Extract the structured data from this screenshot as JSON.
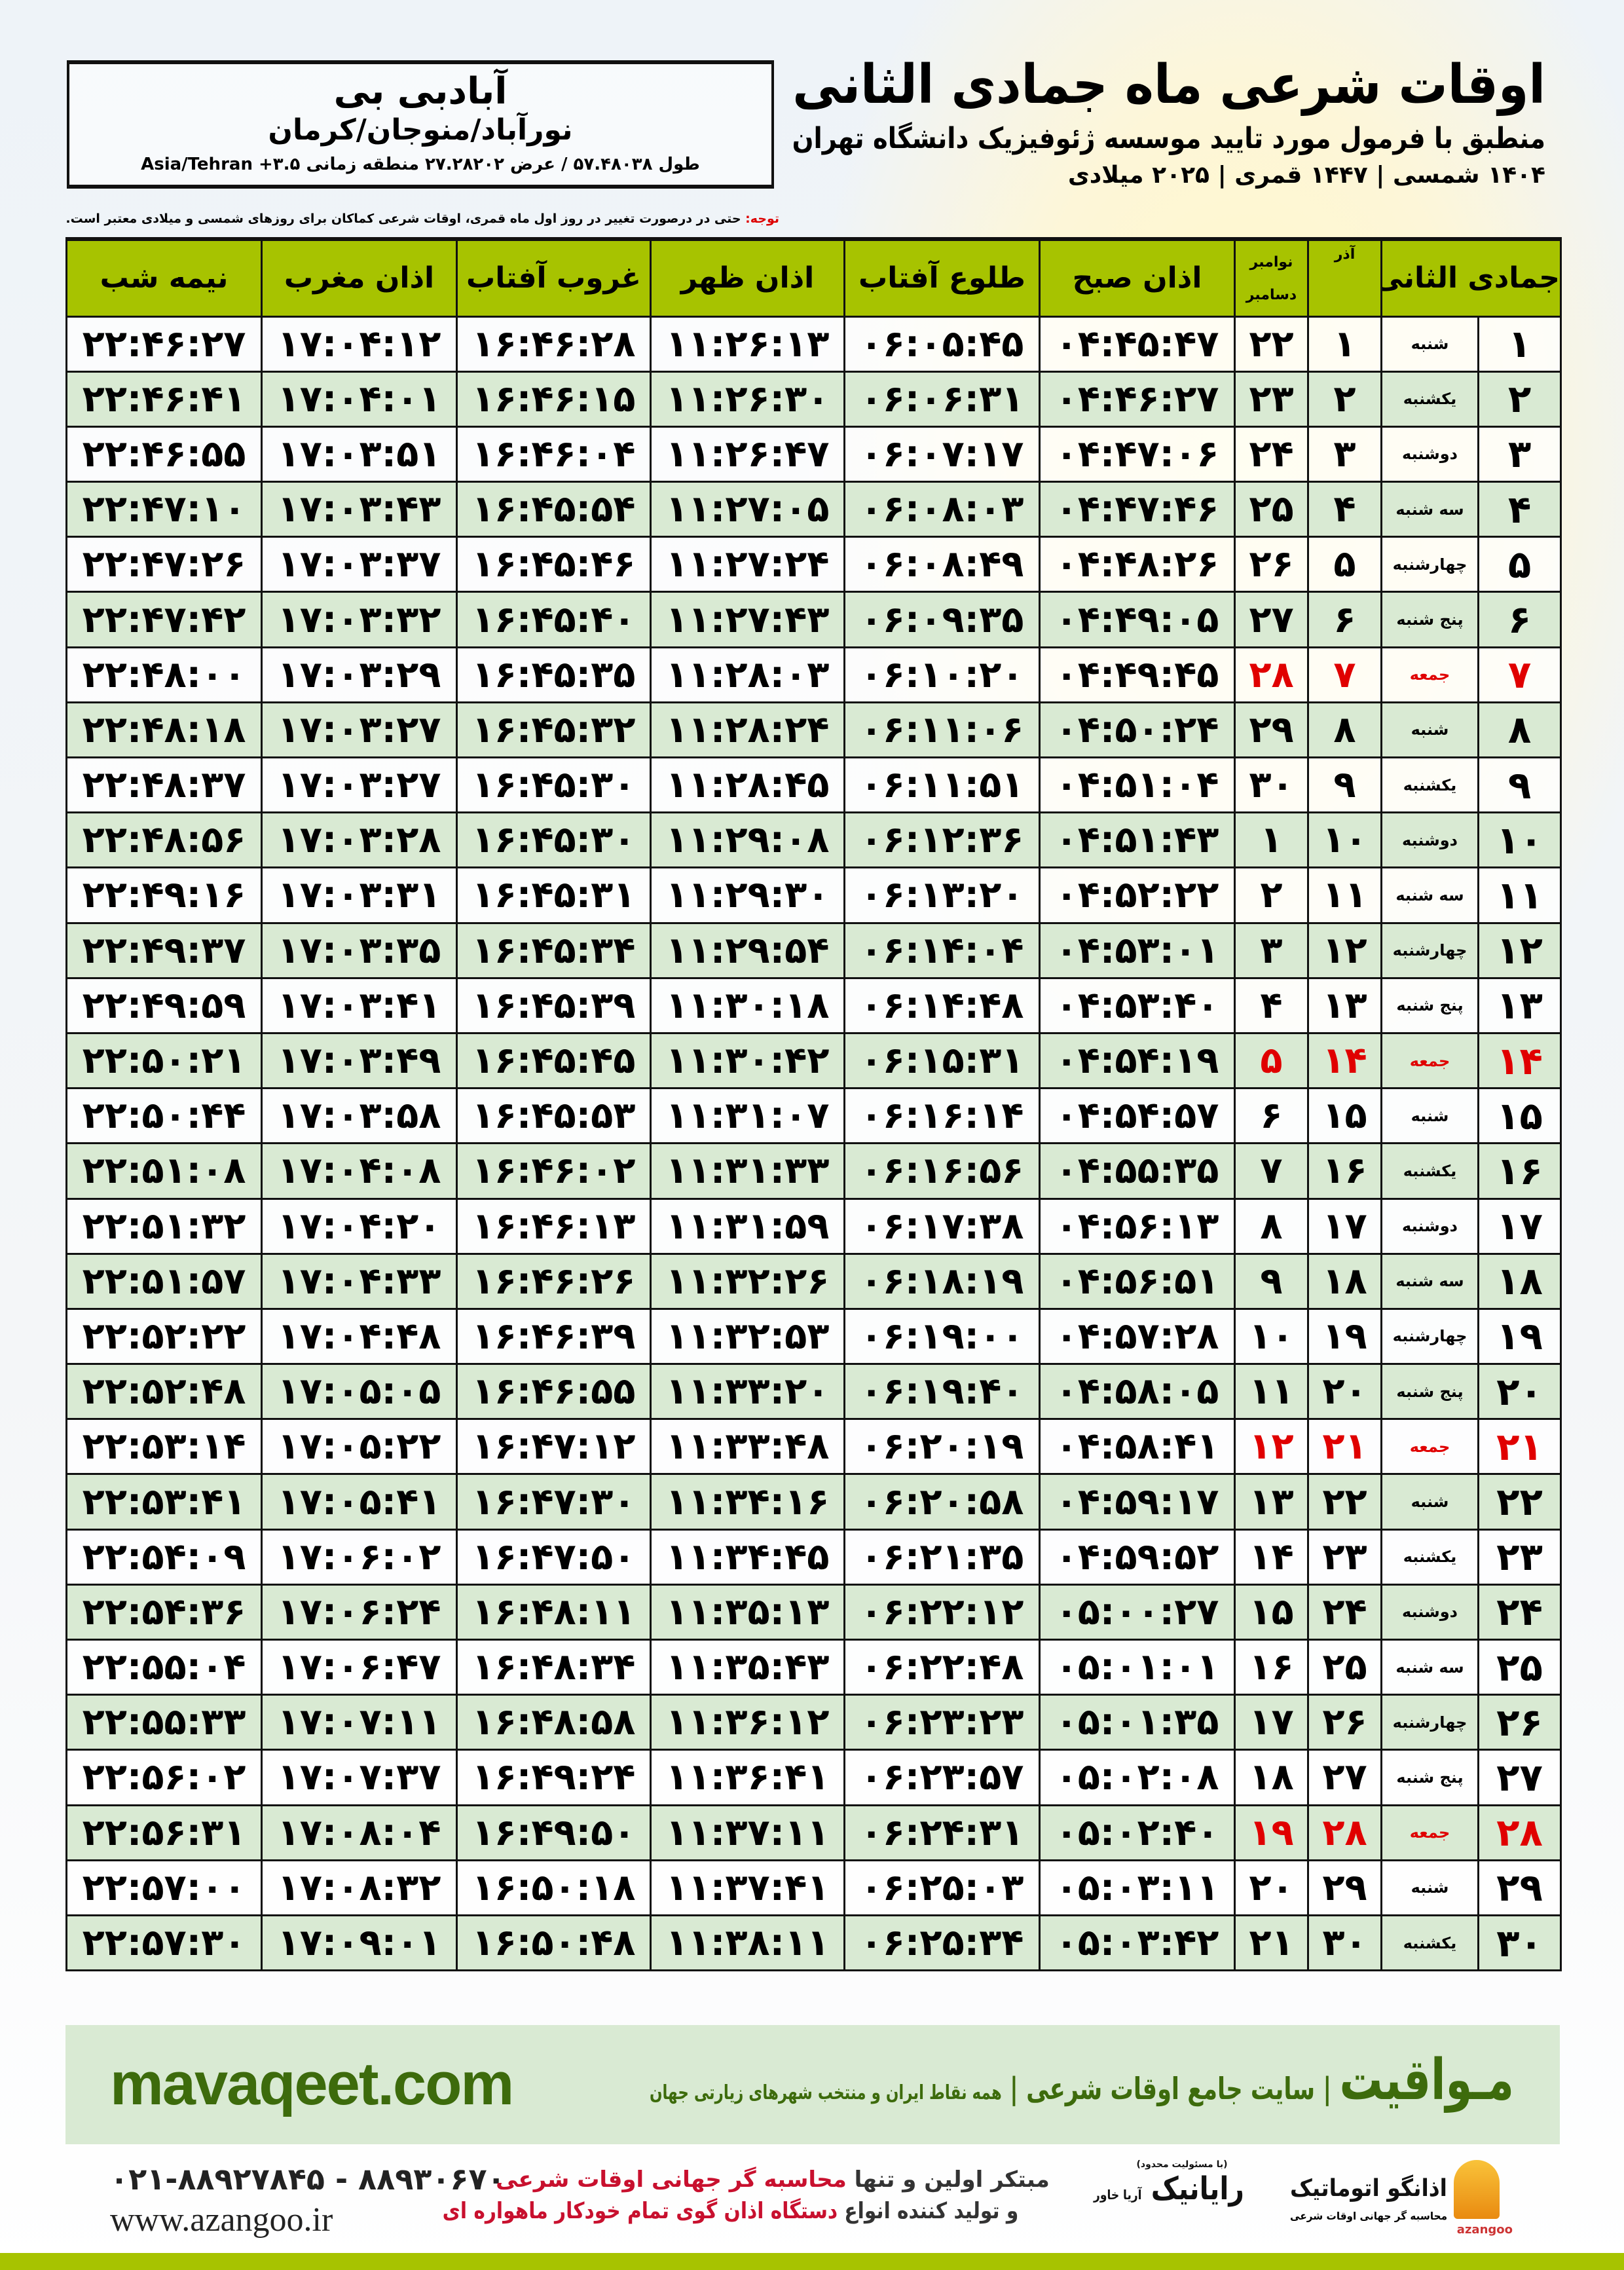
{
  "title": "اوقات شرعی ماه جمادی الثانی",
  "subtitle": "منطبق با فرمول مورد تایید موسسه ژئوفیزیک دانشگاه تهران",
  "years": "۱۴۰۴ شمسی | ۱۴۴۷ قمری | ۲۰۲۵ میلادی",
  "location": {
    "city": "آبادبی بی",
    "path": "نورآباد/منوجان/کرمان",
    "coords": "طول ۵۷.۴۸۰۳۸ / عرض ۲۷.۲۸۲۰۲ منطقه زمانی ۳.۵+ Asia/Tehran"
  },
  "note": {
    "label": "توجه:",
    "text": " حتی در درصورت تغییر در روز اول ماه قمری، اوقات شرعی کماکان برای روزهای شمسی و میلادی معتبر است."
  },
  "table": {
    "headers": {
      "day": "جمادی الثانی",
      "weekday": "",
      "azar": "آذر",
      "greg": "نوامبر\nدسامبر",
      "fajr": "اذان صبح",
      "sunrise": "طلوع آفتاب",
      "dhuhr": "اذان ظهر",
      "sunset": "غروب آفتاب",
      "maghrib": "اذان مغرب",
      "midnight": "نیمه شب"
    },
    "holiday_color": "#e00000",
    "rows": [
      [
        "۱",
        "شنبه",
        "۱",
        "۲۲",
        "۰۴:۴۵:۴۷",
        "۰۶:۰۵:۴۵",
        "۱۱:۲۶:۱۳",
        "۱۶:۴۶:۲۸",
        "۱۷:۰۴:۱۲",
        "۲۲:۴۶:۲۷"
      ],
      [
        "۲",
        "یکشنبه",
        "۲",
        "۲۳",
        "۰۴:۴۶:۲۷",
        "۰۶:۰۶:۳۱",
        "۱۱:۲۶:۳۰",
        "۱۶:۴۶:۱۵",
        "۱۷:۰۴:۰۱",
        "۲۲:۴۶:۴۱"
      ],
      [
        "۳",
        "دوشنبه",
        "۳",
        "۲۴",
        "۰۴:۴۷:۰۶",
        "۰۶:۰۷:۱۷",
        "۱۱:۲۶:۴۷",
        "۱۶:۴۶:۰۴",
        "۱۷:۰۳:۵۱",
        "۲۲:۴۶:۵۵"
      ],
      [
        "۴",
        "سه شنبه",
        "۴",
        "۲۵",
        "۰۴:۴۷:۴۶",
        "۰۶:۰۸:۰۳",
        "۱۱:۲۷:۰۵",
        "۱۶:۴۵:۵۴",
        "۱۷:۰۳:۴۳",
        "۲۲:۴۷:۱۰"
      ],
      [
        "۵",
        "چهارشنبه",
        "۵",
        "۲۶",
        "۰۴:۴۸:۲۶",
        "۰۶:۰۸:۴۹",
        "۱۱:۲۷:۲۴",
        "۱۶:۴۵:۴۶",
        "۱۷:۰۳:۳۷",
        "۲۲:۴۷:۲۶"
      ],
      [
        "۶",
        "پنج شنبه",
        "۶",
        "۲۷",
        "۰۴:۴۹:۰۵",
        "۰۶:۰۹:۳۵",
        "۱۱:۲۷:۴۳",
        "۱۶:۴۵:۴۰",
        "۱۷:۰۳:۳۲",
        "۲۲:۴۷:۴۲"
      ],
      [
        "۷",
        "جمعه",
        "۷",
        "۲۸",
        "۰۴:۴۹:۴۵",
        "۰۶:۱۰:۲۰",
        "۱۱:۲۸:۰۳",
        "۱۶:۴۵:۳۵",
        "۱۷:۰۳:۲۹",
        "۲۲:۴۸:۰۰"
      ],
      [
        "۸",
        "شنبه",
        "۸",
        "۲۹",
        "۰۴:۵۰:۲۴",
        "۰۶:۱۱:۰۶",
        "۱۱:۲۸:۲۴",
        "۱۶:۴۵:۳۲",
        "۱۷:۰۳:۲۷",
        "۲۲:۴۸:۱۸"
      ],
      [
        "۹",
        "یکشنبه",
        "۹",
        "۳۰",
        "۰۴:۵۱:۰۴",
        "۰۶:۱۱:۵۱",
        "۱۱:۲۸:۴۵",
        "۱۶:۴۵:۳۰",
        "۱۷:۰۳:۲۷",
        "۲۲:۴۸:۳۷"
      ],
      [
        "۱۰",
        "دوشنبه",
        "۱۰",
        "۱",
        "۰۴:۵۱:۴۳",
        "۰۶:۱۲:۳۶",
        "۱۱:۲۹:۰۸",
        "۱۶:۴۵:۳۰",
        "۱۷:۰۳:۲۸",
        "۲۲:۴۸:۵۶"
      ],
      [
        "۱۱",
        "سه شنبه",
        "۱۱",
        "۲",
        "۰۴:۵۲:۲۲",
        "۰۶:۱۳:۲۰",
        "۱۱:۲۹:۳۰",
        "۱۶:۴۵:۳۱",
        "۱۷:۰۳:۳۱",
        "۲۲:۴۹:۱۶"
      ],
      [
        "۱۲",
        "چهارشنبه",
        "۱۲",
        "۳",
        "۰۴:۵۳:۰۱",
        "۰۶:۱۴:۰۴",
        "۱۱:۲۹:۵۴",
        "۱۶:۴۵:۳۴",
        "۱۷:۰۳:۳۵",
        "۲۲:۴۹:۳۷"
      ],
      [
        "۱۳",
        "پنج شنبه",
        "۱۳",
        "۴",
        "۰۴:۵۳:۴۰",
        "۰۶:۱۴:۴۸",
        "۱۱:۳۰:۱۸",
        "۱۶:۴۵:۳۹",
        "۱۷:۰۳:۴۱",
        "۲۲:۴۹:۵۹"
      ],
      [
        "۱۴",
        "جمعه",
        "۱۴",
        "۵",
        "۰۴:۵۴:۱۹",
        "۰۶:۱۵:۳۱",
        "۱۱:۳۰:۴۲",
        "۱۶:۴۵:۴۵",
        "۱۷:۰۳:۴۹",
        "۲۲:۵۰:۲۱"
      ],
      [
        "۱۵",
        "شنبه",
        "۱۵",
        "۶",
        "۰۴:۵۴:۵۷",
        "۰۶:۱۶:۱۴",
        "۱۱:۳۱:۰۷",
        "۱۶:۴۵:۵۳",
        "۱۷:۰۳:۵۸",
        "۲۲:۵۰:۴۴"
      ],
      [
        "۱۶",
        "یکشنبه",
        "۱۶",
        "۷",
        "۰۴:۵۵:۳۵",
        "۰۶:۱۶:۵۶",
        "۱۱:۳۱:۳۳",
        "۱۶:۴۶:۰۲",
        "۱۷:۰۴:۰۸",
        "۲۲:۵۱:۰۸"
      ],
      [
        "۱۷",
        "دوشنبه",
        "۱۷",
        "۸",
        "۰۴:۵۶:۱۳",
        "۰۶:۱۷:۳۸",
        "۱۱:۳۱:۵۹",
        "۱۶:۴۶:۱۳",
        "۱۷:۰۴:۲۰",
        "۲۲:۵۱:۳۲"
      ],
      [
        "۱۸",
        "سه شنبه",
        "۱۸",
        "۹",
        "۰۴:۵۶:۵۱",
        "۰۶:۱۸:۱۹",
        "۱۱:۳۲:۲۶",
        "۱۶:۴۶:۲۶",
        "۱۷:۰۴:۳۳",
        "۲۲:۵۱:۵۷"
      ],
      [
        "۱۹",
        "چهارشنبه",
        "۱۹",
        "۱۰",
        "۰۴:۵۷:۲۸",
        "۰۶:۱۹:۰۰",
        "۱۱:۳۲:۵۳",
        "۱۶:۴۶:۳۹",
        "۱۷:۰۴:۴۸",
        "۲۲:۵۲:۲۲"
      ],
      [
        "۲۰",
        "پنج شنبه",
        "۲۰",
        "۱۱",
        "۰۴:۵۸:۰۵",
        "۰۶:۱۹:۴۰",
        "۱۱:۳۳:۲۰",
        "۱۶:۴۶:۵۵",
        "۱۷:۰۵:۰۵",
        "۲۲:۵۲:۴۸"
      ],
      [
        "۲۱",
        "جمعه",
        "۲۱",
        "۱۲",
        "۰۴:۵۸:۴۱",
        "۰۶:۲۰:۱۹",
        "۱۱:۳۳:۴۸",
        "۱۶:۴۷:۱۲",
        "۱۷:۰۵:۲۲",
        "۲۲:۵۳:۱۴"
      ],
      [
        "۲۲",
        "شنبه",
        "۲۲",
        "۱۳",
        "۰۴:۵۹:۱۷",
        "۰۶:۲۰:۵۸",
        "۱۱:۳۴:۱۶",
        "۱۶:۴۷:۳۰",
        "۱۷:۰۵:۴۱",
        "۲۲:۵۳:۴۱"
      ],
      [
        "۲۳",
        "یکشنبه",
        "۲۳",
        "۱۴",
        "۰۴:۵۹:۵۲",
        "۰۶:۲۱:۳۵",
        "۱۱:۳۴:۴۵",
        "۱۶:۴۷:۵۰",
        "۱۷:۰۶:۰۲",
        "۲۲:۵۴:۰۹"
      ],
      [
        "۲۴",
        "دوشنبه",
        "۲۴",
        "۱۵",
        "۰۵:۰۰:۲۷",
        "۰۶:۲۲:۱۲",
        "۱۱:۳۵:۱۳",
        "۱۶:۴۸:۱۱",
        "۱۷:۰۶:۲۴",
        "۲۲:۵۴:۳۶"
      ],
      [
        "۲۵",
        "سه شنبه",
        "۲۵",
        "۱۶",
        "۰۵:۰۱:۰۱",
        "۰۶:۲۲:۴۸",
        "۱۱:۳۵:۴۳",
        "۱۶:۴۸:۳۴",
        "۱۷:۰۶:۴۷",
        "۲۲:۵۵:۰۴"
      ],
      [
        "۲۶",
        "چهارشنبه",
        "۲۶",
        "۱۷",
        "۰۵:۰۱:۳۵",
        "۰۶:۲۳:۲۳",
        "۱۱:۳۶:۱۲",
        "۱۶:۴۸:۵۸",
        "۱۷:۰۷:۱۱",
        "۲۲:۵۵:۳۳"
      ],
      [
        "۲۷",
        "پنج شنبه",
        "۲۷",
        "۱۸",
        "۰۵:۰۲:۰۸",
        "۰۶:۲۳:۵۷",
        "۱۱:۳۶:۴۱",
        "۱۶:۴۹:۲۴",
        "۱۷:۰۷:۳۷",
        "۲۲:۵۶:۰۲"
      ],
      [
        "۲۸",
        "جمعه",
        "۲۸",
        "۱۹",
        "۰۵:۰۲:۴۰",
        "۰۶:۲۴:۳۱",
        "۱۱:۳۷:۱۱",
        "۱۶:۴۹:۵۰",
        "۱۷:۰۸:۰۴",
        "۲۲:۵۶:۳۱"
      ],
      [
        "۲۹",
        "شنبه",
        "۲۹",
        "۲۰",
        "۰۵:۰۳:۱۱",
        "۰۶:۲۵:۰۳",
        "۱۱:۳۷:۴۱",
        "۱۶:۵۰:۱۸",
        "۱۷:۰۸:۳۲",
        "۲۲:۵۷:۰۰"
      ],
      [
        "۳۰",
        "یکشنبه",
        "۳۰",
        "۲۱",
        "۰۵:۰۳:۴۲",
        "۰۶:۲۵:۳۴",
        "۱۱:۳۸:۱۱",
        "۱۶:۵۰:۴۸",
        "۱۷:۰۹:۰۱",
        "۲۲:۵۷:۳۰"
      ]
    ]
  },
  "banner": {
    "site": "mavaqeet.com",
    "brand": "مـواقیت",
    "sep": " | ",
    "tagline": "سایت جامع اوقات شرعی",
    "sub": "همه نقاط ایران و منتخب شهرهای زیارتی جهان",
    "color": "#3d6b0c"
  },
  "footer": {
    "phone": "۰۲۱-۸۸۹۲۷۸۴۵ - ۸۸۹۳۰۶۷۰",
    "web": "www.azangoo.ir",
    "slogan1a": "مبتکر اولین و تنها ",
    "slogan1b": "محاسبه گر جهانی اوقات شرعی",
    "slogan2a": "و تولید کننده انواع ",
    "slogan2b": "دستگاه اذان گوی تمام خودکار ماهواره ای",
    "logo2_small": "(با مسئولیت محدود)",
    "logo2": "رایانیک",
    "logo2_side": "آریا خاور",
    "logo1": "اذانگو اتوماتیک",
    "logo1_sub": "محاسبه گر جهانی اوقات شرعی",
    "logo1_en": "azangoo"
  }
}
